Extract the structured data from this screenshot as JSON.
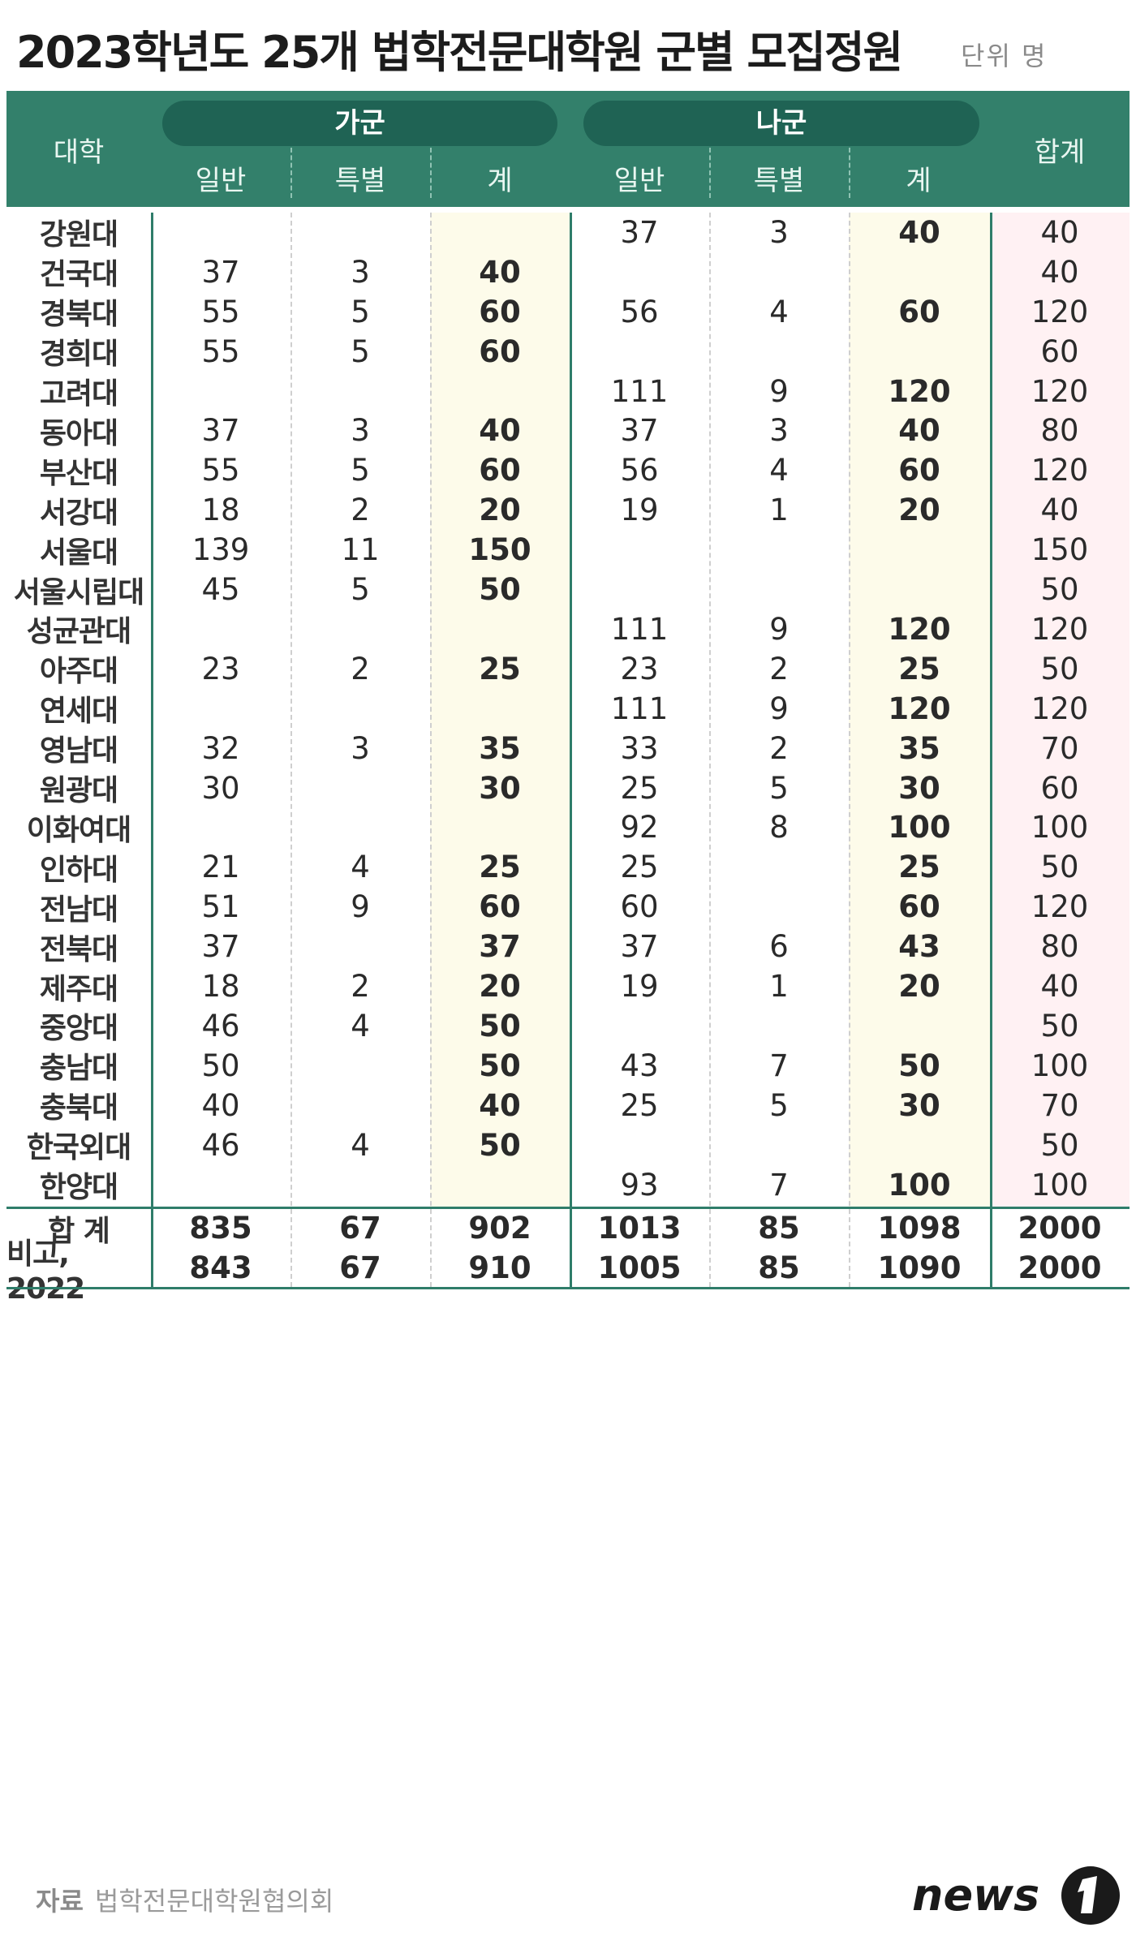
{
  "title": "2023학년도 25개 법학전문대학원 군별 모집정원",
  "unit": "단위 명",
  "header": {
    "univ": "대학",
    "group_a": "가군",
    "group_b": "나군",
    "total": "합계",
    "sub": [
      "일반",
      "특별",
      "계"
    ]
  },
  "colors": {
    "header_bg": "#33806b",
    "pill_bg": "#1f6354",
    "line": "#2f7d6a",
    "cream": "#fdfbea",
    "pink": "#fff1f3"
  },
  "source_label": "자료",
  "source_text": "법학전문대학원협의회",
  "logo_text": "news1",
  "rows": [
    {
      "name": "강원대",
      "a_gen": "",
      "a_spe": "",
      "a_tot": "",
      "b_gen": "37",
      "b_spe": "3",
      "b_tot": "40",
      "sum": "40"
    },
    {
      "name": "건국대",
      "a_gen": "37",
      "a_spe": "3",
      "a_tot": "40",
      "b_gen": "",
      "b_spe": "",
      "b_tot": "",
      "sum": "40"
    },
    {
      "name": "경북대",
      "a_gen": "55",
      "a_spe": "5",
      "a_tot": "60",
      "b_gen": "56",
      "b_spe": "4",
      "b_tot": "60",
      "sum": "120"
    },
    {
      "name": "경희대",
      "a_gen": "55",
      "a_spe": "5",
      "a_tot": "60",
      "b_gen": "",
      "b_spe": "",
      "b_tot": "",
      "sum": "60"
    },
    {
      "name": "고려대",
      "a_gen": "",
      "a_spe": "",
      "a_tot": "",
      "b_gen": "111",
      "b_spe": "9",
      "b_tot": "120",
      "sum": "120"
    },
    {
      "name": "동아대",
      "a_gen": "37",
      "a_spe": "3",
      "a_tot": "40",
      "b_gen": "37",
      "b_spe": "3",
      "b_tot": "40",
      "sum": "80"
    },
    {
      "name": "부산대",
      "a_gen": "55",
      "a_spe": "5",
      "a_tot": "60",
      "b_gen": "56",
      "b_spe": "4",
      "b_tot": "60",
      "sum": "120"
    },
    {
      "name": "서강대",
      "a_gen": "18",
      "a_spe": "2",
      "a_tot": "20",
      "b_gen": "19",
      "b_spe": "1",
      "b_tot": "20",
      "sum": "40"
    },
    {
      "name": "서울대",
      "a_gen": "139",
      "a_spe": "11",
      "a_tot": "150",
      "b_gen": "",
      "b_spe": "",
      "b_tot": "",
      "sum": "150"
    },
    {
      "name": "서울시립대",
      "a_gen": "45",
      "a_spe": "5",
      "a_tot": "50",
      "b_gen": "",
      "b_spe": "",
      "b_tot": "",
      "sum": "50"
    },
    {
      "name": "성균관대",
      "a_gen": "",
      "a_spe": "",
      "a_tot": "",
      "b_gen": "111",
      "b_spe": "9",
      "b_tot": "120",
      "sum": "120"
    },
    {
      "name": "아주대",
      "a_gen": "23",
      "a_spe": "2",
      "a_tot": "25",
      "b_gen": "23",
      "b_spe": "2",
      "b_tot": "25",
      "sum": "50"
    },
    {
      "name": "연세대",
      "a_gen": "",
      "a_spe": "",
      "a_tot": "",
      "b_gen": "111",
      "b_spe": "9",
      "b_tot": "120",
      "sum": "120"
    },
    {
      "name": "영남대",
      "a_gen": "32",
      "a_spe": "3",
      "a_tot": "35",
      "b_gen": "33",
      "b_spe": "2",
      "b_tot": "35",
      "sum": "70"
    },
    {
      "name": "원광대",
      "a_gen": "30",
      "a_spe": "",
      "a_tot": "30",
      "b_gen": "25",
      "b_spe": "5",
      "b_tot": "30",
      "sum": "60"
    },
    {
      "name": "이화여대",
      "a_gen": "",
      "a_spe": "",
      "a_tot": "",
      "b_gen": "92",
      "b_spe": "8",
      "b_tot": "100",
      "sum": "100"
    },
    {
      "name": "인하대",
      "a_gen": "21",
      "a_spe": "4",
      "a_tot": "25",
      "b_gen": "25",
      "b_spe": "",
      "b_tot": "25",
      "sum": "50"
    },
    {
      "name": "전남대",
      "a_gen": "51",
      "a_spe": "9",
      "a_tot": "60",
      "b_gen": "60",
      "b_spe": "",
      "b_tot": "60",
      "sum": "120"
    },
    {
      "name": "전북대",
      "a_gen": "37",
      "a_spe": "",
      "a_tot": "37",
      "b_gen": "37",
      "b_spe": "6",
      "b_tot": "43",
      "sum": "80"
    },
    {
      "name": "제주대",
      "a_gen": "18",
      "a_spe": "2",
      "a_tot": "20",
      "b_gen": "19",
      "b_spe": "1",
      "b_tot": "20",
      "sum": "40"
    },
    {
      "name": "중앙대",
      "a_gen": "46",
      "a_spe": "4",
      "a_tot": "50",
      "b_gen": "",
      "b_spe": "",
      "b_tot": "",
      "sum": "50"
    },
    {
      "name": "충남대",
      "a_gen": "50",
      "a_spe": "",
      "a_tot": "50",
      "b_gen": "43",
      "b_spe": "7",
      "b_tot": "50",
      "sum": "100"
    },
    {
      "name": "충북대",
      "a_gen": "40",
      "a_spe": "",
      "a_tot": "40",
      "b_gen": "25",
      "b_spe": "5",
      "b_tot": "30",
      "sum": "70"
    },
    {
      "name": "한국외대",
      "a_gen": "46",
      "a_spe": "4",
      "a_tot": "50",
      "b_gen": "",
      "b_spe": "",
      "b_tot": "",
      "sum": "50"
    },
    {
      "name": "한양대",
      "a_gen": "",
      "a_spe": "",
      "a_tot": "",
      "b_gen": "93",
      "b_spe": "7",
      "b_tot": "100",
      "sum": "100"
    }
  ],
  "summary": [
    {
      "name": "합 계",
      "a_gen": "835",
      "a_spe": "67",
      "a_tot": "902",
      "b_gen": "1013",
      "b_spe": "85",
      "b_tot": "1098",
      "sum": "2000"
    },
    {
      "name": "비고, 2022",
      "a_gen": "843",
      "a_spe": "67",
      "a_tot": "910",
      "b_gen": "1005",
      "b_spe": "85",
      "b_tot": "1090",
      "sum": "2000"
    }
  ],
  "chart_data": {
    "type": "table",
    "title": "2023학년도 25개 법학전문대학원 군별 모집정원",
    "columns": [
      "대학",
      "가군 일반",
      "가군 특별",
      "가군 계",
      "나군 일반",
      "나군 특별",
      "나군 계",
      "합계"
    ]
  }
}
